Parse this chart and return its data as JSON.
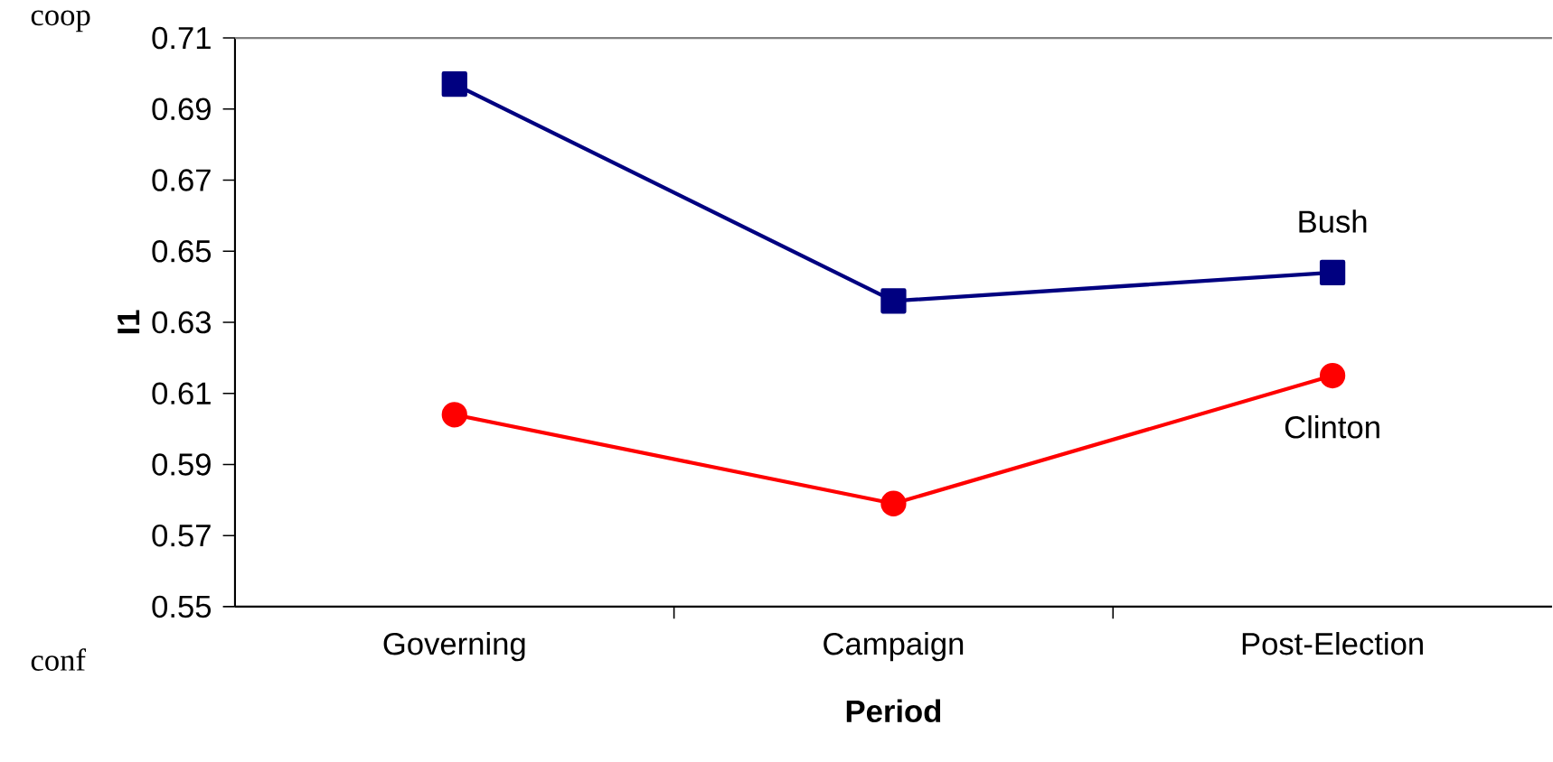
{
  "chart_data": {
    "type": "line",
    "xlabel": "Period",
    "ylabel": "I1",
    "categories": [
      "Governing",
      "Campaign",
      "Post-Election"
    ],
    "series": [
      {
        "name": "Bush",
        "color": "#000080",
        "marker": "square",
        "values": [
          0.697,
          0.636,
          0.644
        ]
      },
      {
        "name": "Clinton",
        "color": "#ff0000",
        "marker": "circle",
        "values": [
          0.604,
          0.579,
          0.615
        ]
      }
    ],
    "ylim": [
      0.55,
      0.71
    ],
    "yticks": [
      0.55,
      0.57,
      0.59,
      0.61,
      0.63,
      0.65,
      0.67,
      0.69,
      0.71
    ],
    "grid": false,
    "legend": false,
    "annotations": [
      "coop",
      "conf"
    ]
  }
}
